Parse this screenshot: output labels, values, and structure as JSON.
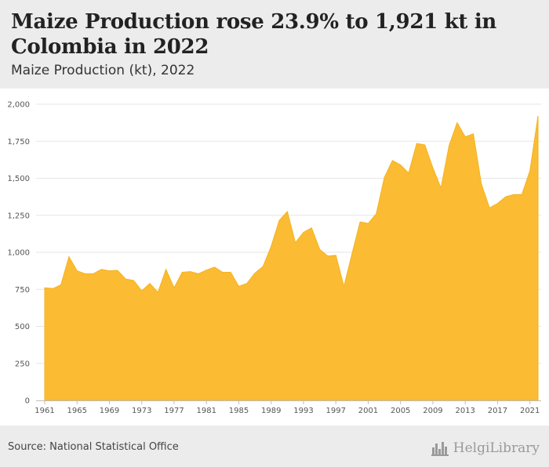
{
  "header": {
    "title": "Maize Production rose 23.9% to 1,921 kt in Colombia in 2022",
    "subtitle": "Maize Production (kt), 2022"
  },
  "footer": {
    "source": "Source: National Statistical Office",
    "brand": "HelgiLibrary",
    "brand_icon": "city-skyline-icon"
  },
  "colors": {
    "area_fill": "#fbbc33",
    "area_stroke": "#f5b21e",
    "grid": "#e6e6e6",
    "header_bg": "#ececec"
  },
  "chart_data": {
    "type": "area",
    "title": "Maize Production rose 23.9% to 1,921 kt in Colombia in 2022",
    "subtitle": "Maize Production (kt), 2022",
    "xlabel": "",
    "ylabel": "",
    "ylim": [
      0,
      2000
    ],
    "yticks": [
      "0",
      "250",
      "500",
      "750",
      "1,000",
      "1,250",
      "1,500",
      "1,750",
      "2,000"
    ],
    "xticks": [
      "1961",
      "1965",
      "1969",
      "1973",
      "1977",
      "1981",
      "1985",
      "1989",
      "1993",
      "1997",
      "2001",
      "2005",
      "2009",
      "2013",
      "2017",
      "2021"
    ],
    "grid": true,
    "legend": "none",
    "series": [
      {
        "x": [
          1961,
          1962,
          1963,
          1964,
          1965,
          1966,
          1967,
          1968,
          1969,
          1970,
          1971,
          1972,
          1973,
          1974,
          1975,
          1976,
          1977,
          1978,
          1979,
          1980,
          1981,
          1982,
          1983,
          1984,
          1985,
          1986,
          1987,
          1988,
          1989,
          1990,
          1991,
          1992,
          1993,
          1994,
          1995,
          1996,
          1997,
          1998,
          1999,
          2000,
          2001,
          2002,
          2003,
          2004,
          2005,
          2006,
          2007,
          2008,
          2009,
          2010,
          2011,
          2012,
          2013,
          2014,
          2015,
          2016,
          2017,
          2018,
          2019,
          2020,
          2021,
          2022
        ],
        "values": [
          760,
          755,
          780,
          970,
          875,
          855,
          855,
          885,
          875,
          878,
          820,
          810,
          740,
          790,
          730,
          885,
          760,
          865,
          870,
          855,
          880,
          900,
          865,
          865,
          770,
          790,
          860,
          905,
          1040,
          1215,
          1275,
          1065,
          1135,
          1165,
          1020,
          975,
          980,
          770,
          990,
          1205,
          1195,
          1260,
          1505,
          1620,
          1590,
          1535,
          1735,
          1725,
          1570,
          1435,
          1720,
          1875,
          1780,
          1800,
          1460,
          1300,
          1330,
          1375,
          1390,
          1390,
          1550,
          1921
        ]
      }
    ]
  }
}
